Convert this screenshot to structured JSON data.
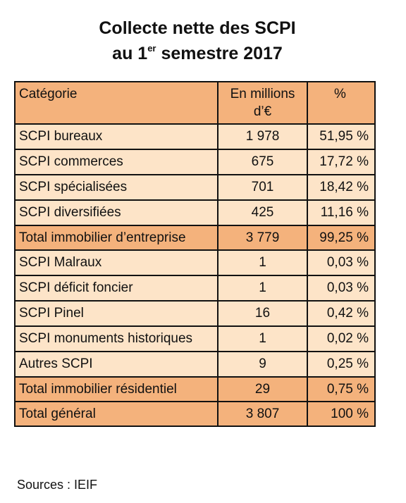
{
  "title": [
    "Collecte nette des SCPI",
    "au 1",
    "er",
    "semestre 2017"
  ],
  "table": {
    "header": [
      "Catégorie",
      "En millions d’€",
      "%"
    ],
    "rows": [
      [
        "SCPI bureaux",
        "1 978",
        "51,95 %"
      ],
      [
        "SCPI commerces",
        "675",
        "17,72 %"
      ],
      [
        "SCPI spécialisées",
        "701",
        "18,42 %"
      ],
      [
        "SCPI diversifiées",
        "425",
        "11,16 %"
      ],
      [
        "Total immobilier d’entreprise",
        "3 779",
        "99,25 %"
      ],
      [
        "SCPI Malraux",
        "1",
        "0,03 %"
      ],
      [
        "SCPI déficit foncier",
        "1",
        "0,03 %"
      ],
      [
        "SCPI Pinel",
        "16",
        "0,42 %"
      ],
      [
        "SCPI monuments historiques",
        "1",
        "0,02 %"
      ],
      [
        "Autres SCPI",
        "9",
        "0,25 %"
      ],
      [
        "Total immobilier résidentiel",
        "29",
        "0,75 %"
      ],
      [
        "Total général",
        "3 807",
        "100 %"
      ]
    ]
  },
  "sources": "Sources : IEIF"
}
